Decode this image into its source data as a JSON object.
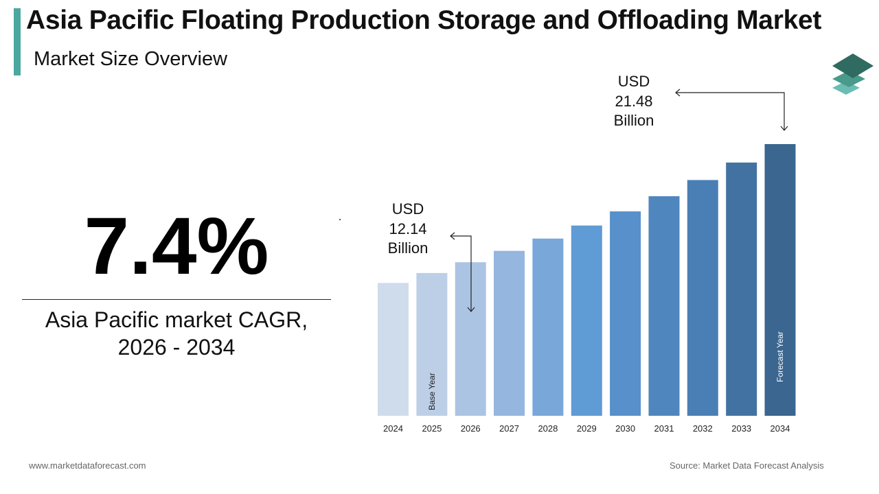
{
  "header": {
    "title": "Asia Pacific Floating Production Storage and Offloading Market",
    "subtitle": "Market Size Overview"
  },
  "cagr": {
    "value": "7.4%",
    "label_line1": "Asia Pacific market CAGR,",
    "label_line2": "2026 - 2034"
  },
  "annotations": {
    "start": {
      "line1": "USD",
      "line2": "12.14",
      "line3": "Billion"
    },
    "end": {
      "line1": "USD",
      "line2": "21.48",
      "line3": "Billion"
    }
  },
  "footer": {
    "website": "www.marketdataforecast.com",
    "source": "Source: Market Data Forecast Analysis"
  },
  "colors": {
    "accent": "#4aa8a0",
    "logo_dark": "#2f6b60",
    "logo_mid": "#4a9a8c",
    "logo_light": "#6bbdb3"
  },
  "chart_data": {
    "type": "bar",
    "categories": [
      "2024",
      "2025",
      "2026",
      "2027",
      "2028",
      "2029",
      "2030",
      "2031",
      "2032",
      "2033",
      "2034"
    ],
    "values": [
      10.5,
      11.29,
      12.14,
      13.04,
      14.01,
      15.04,
      16.16,
      17.36,
      18.64,
      20.02,
      21.48
    ],
    "bar_colors": [
      "#cfdcec",
      "#bccfe7",
      "#abc4e3",
      "#95b6de",
      "#79a7da",
      "#5f9bd5",
      "#5790cb",
      "#4f86be",
      "#4a7fb5",
      "#4272a2",
      "#3a668f"
    ],
    "bar_labels": {
      "1": "Base Year",
      "10": "Forecast Year"
    },
    "ylim": [
      0,
      24
    ],
    "grid": false,
    "legend": "none"
  }
}
